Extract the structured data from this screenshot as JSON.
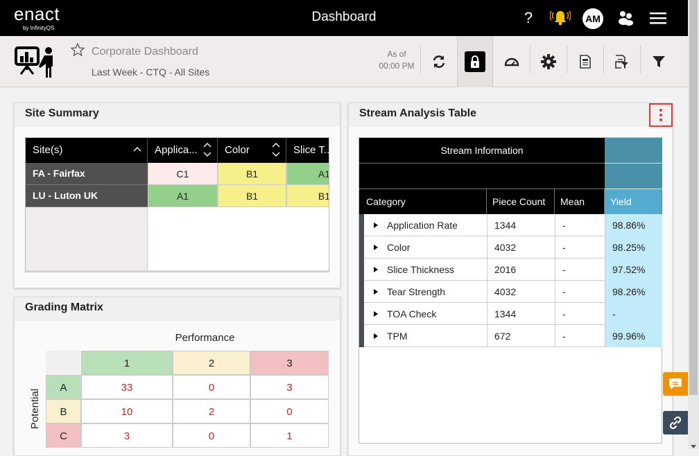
{
  "topbar": {
    "logo": "enact",
    "logo_sub": "by InfinityQS",
    "title": "Dashboard",
    "user_initials": "AM",
    "icons": [
      "help-icon",
      "bell-icon",
      "avatar",
      "users-icon",
      "menu-icon"
    ]
  },
  "subbar": {
    "dashboard_name": "Corporate Dashboard",
    "filter": "Last Week - CTQ - All Sites",
    "as_of_label": "As of",
    "as_of_time": "00:00 PM"
  },
  "site_summary": {
    "title": "Site Summary",
    "columns": [
      "Site(s)",
      "Applica...",
      "Color",
      "Slice T..."
    ],
    "rows": [
      {
        "site": "FA - Fairfax",
        "cells": [
          {
            "v": "C1",
            "c": "#fdeaea"
          },
          {
            "v": "B1",
            "c": "#f7f08a"
          },
          {
            "v": "A1",
            "c": "#93d18a"
          }
        ]
      },
      {
        "site": "LU - Luton UK",
        "cells": [
          {
            "v": "A1",
            "c": "#93d18a"
          },
          {
            "v": "B1",
            "c": "#f7f08a"
          },
          {
            "v": "B1",
            "c": "#f7f08a"
          }
        ]
      }
    ]
  },
  "grading": {
    "title": "Grading Matrix",
    "x_label": "Performance",
    "y_label": "Potential",
    "cols": [
      "1",
      "2",
      "3"
    ],
    "rows": [
      "A",
      "B",
      "C"
    ],
    "values": [
      [
        "33",
        "0",
        "3"
      ],
      [
        "10",
        "2",
        "0"
      ],
      [
        "3",
        "0",
        "1"
      ]
    ],
    "colors": [
      "#b8dfb8",
      "#faf0cf",
      "#f2c0c0"
    ]
  },
  "stream": {
    "title": "Stream Analysis Table",
    "group_header": "Stream Information",
    "columns": [
      "Category",
      "Piece Count",
      "Mean",
      "Yield"
    ],
    "rows": [
      [
        "Application Rate",
        "1344",
        "-",
        "98.86%"
      ],
      [
        "Color",
        "4032",
        "-",
        "98.25%"
      ],
      [
        "Slice Thickness",
        "2016",
        "-",
        "97.52%"
      ],
      [
        "Tear Strength",
        "4032",
        "-",
        "98.26%"
      ],
      [
        "TOA Check",
        "1344",
        "-",
        "-"
      ],
      [
        "TPM",
        "672",
        "-",
        "99.96%"
      ]
    ]
  }
}
